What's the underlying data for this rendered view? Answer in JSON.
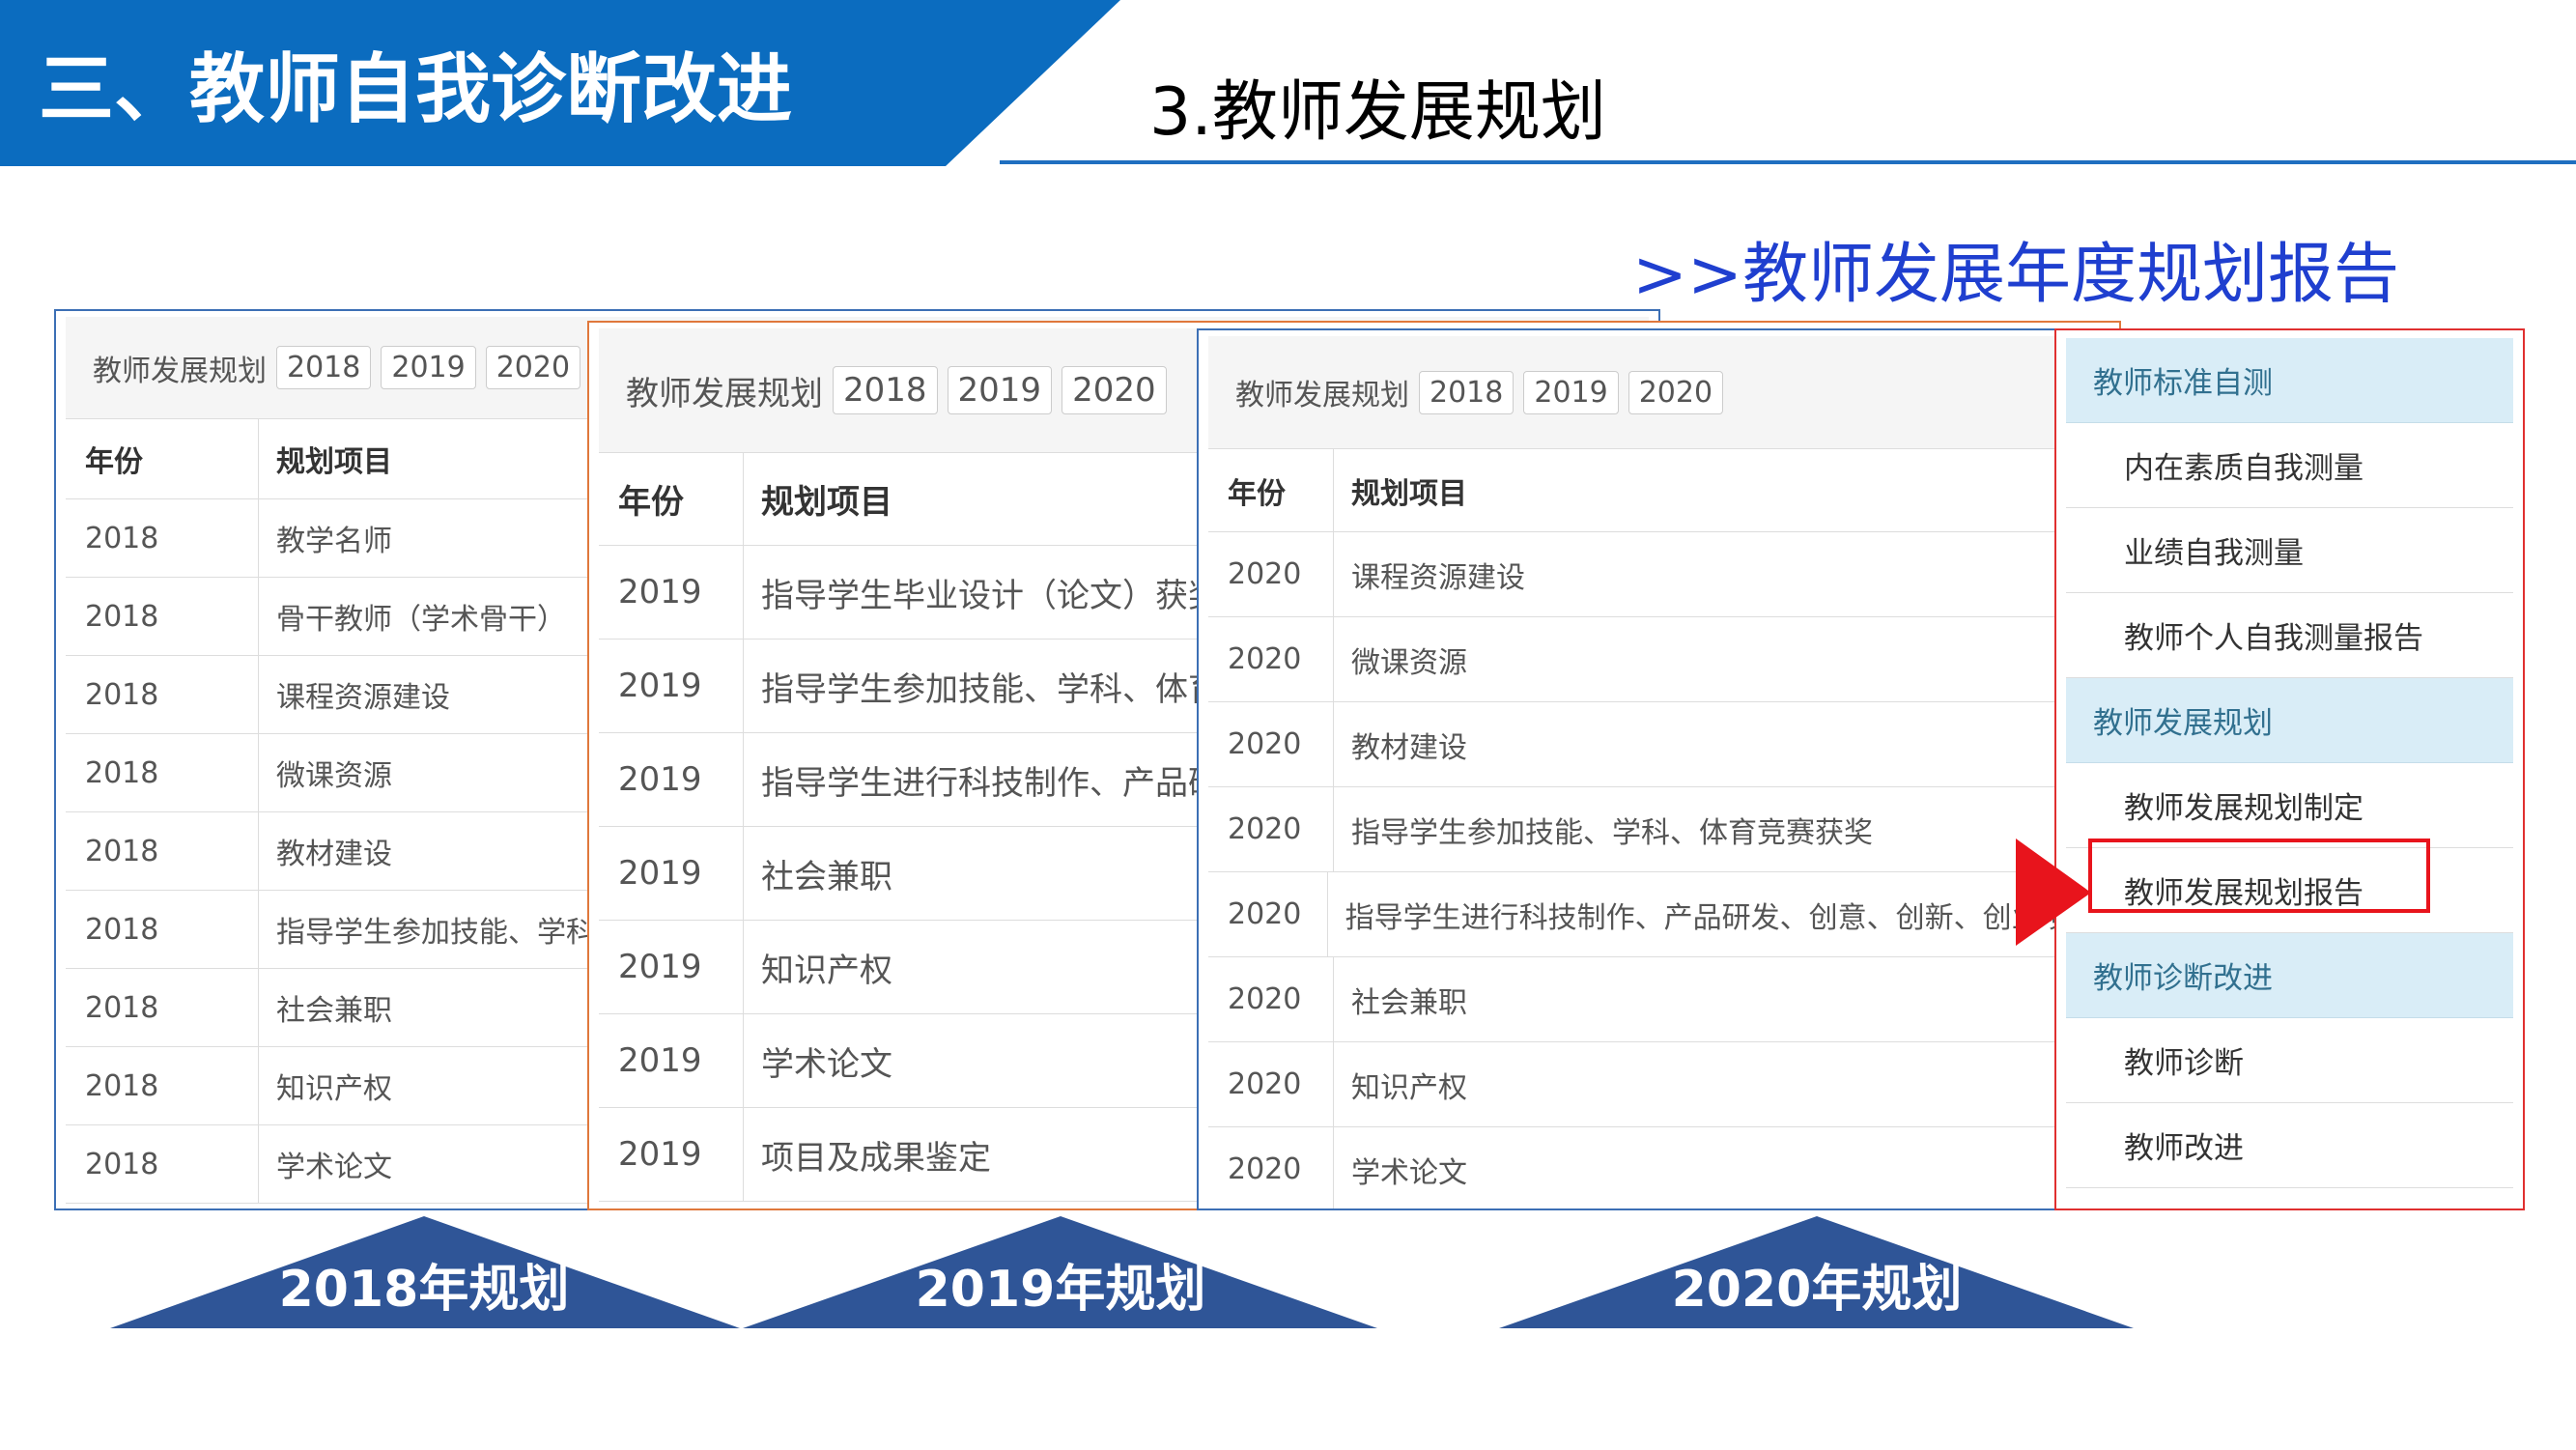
{
  "header": {
    "title": "三、教师自我诊断改进",
    "subtitle": "3.教师发展规划"
  },
  "section_title": ">>教师发展年度规划报告",
  "panels": [
    {
      "label": "教师发展规划",
      "tabs": [
        "2018",
        "2019",
        "2020"
      ],
      "columns": [
        "年份",
        "规划项目"
      ],
      "rows": [
        [
          "2018",
          "教学名师"
        ],
        [
          "2018",
          "骨干教师（学术骨干）"
        ],
        [
          "2018",
          "课程资源建设"
        ],
        [
          "2018",
          "微课资源"
        ],
        [
          "2018",
          "教材建设"
        ],
        [
          "2018",
          "指导学生参加技能、学科"
        ],
        [
          "2018",
          "社会兼职"
        ],
        [
          "2018",
          "知识产权"
        ],
        [
          "2018",
          "学术论文"
        ]
      ]
    },
    {
      "label": "教师发展规划",
      "tabs": [
        "2018",
        "2019",
        "2020"
      ],
      "columns": [
        "年份",
        "规划项目"
      ],
      "rows": [
        [
          "2019",
          "指导学生毕业设计（论文）获奖"
        ],
        [
          "2019",
          "指导学生参加技能、学科、体育竞赛"
        ],
        [
          "2019",
          "指导学生进行科技制作、产品研发、"
        ],
        [
          "2019",
          "社会兼职"
        ],
        [
          "2019",
          "知识产权"
        ],
        [
          "2019",
          "学术论文"
        ],
        [
          "2019",
          "项目及成果鉴定"
        ]
      ]
    },
    {
      "label": "教师发展规划",
      "tabs": [
        "2018",
        "2019",
        "2020"
      ],
      "columns": [
        "年份",
        "规划项目"
      ],
      "rows": [
        [
          "2020",
          "课程资源建设"
        ],
        [
          "2020",
          "微课资源"
        ],
        [
          "2020",
          "教材建设"
        ],
        [
          "2020",
          "指导学生参加技能、学科、体育竞赛获奖"
        ],
        [
          "2020",
          "指导学生进行科技制作、产品研发、创意、创新、创业项目"
        ],
        [
          "2020",
          "社会兼职"
        ],
        [
          "2020",
          "知识产权"
        ],
        [
          "2020",
          "学术论文"
        ]
      ]
    }
  ],
  "sidebar": [
    {
      "group": "教师标准自测",
      "items": [
        "内在素质自我测量",
        "业绩自我测量",
        "教师个人自我测量报告"
      ]
    },
    {
      "group": "教师发展规划",
      "items": [
        "教师发展规划制定",
        "教师发展规划报告"
      ]
    },
    {
      "group": "教师诊断改进",
      "items": [
        "教师诊断",
        "教师改进"
      ]
    }
  ],
  "captions": [
    "2018年规划",
    "2019年规划",
    "2020年规划"
  ]
}
